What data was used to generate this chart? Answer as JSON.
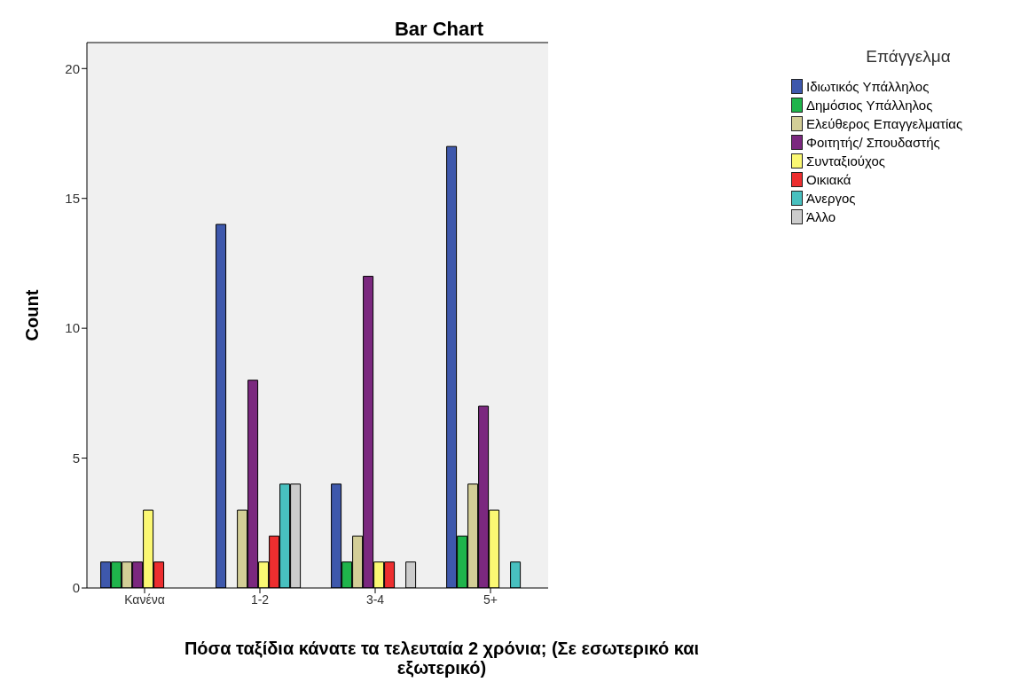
{
  "chart_data": {
    "type": "bar",
    "title": "Bar Chart",
    "xlabel": "Πόσα ταξίδια κάνατε τα τελευταία 2 χρόνια; (Σε εσωτερικό και εξωτερικό)",
    "ylabel": "Count",
    "legend_title": "Επάγγελμα",
    "categories": [
      "Κανένα",
      "1-2",
      "3-4",
      "5+"
    ],
    "series": [
      {
        "name": "Ιδιωτικός Υπάλληλος",
        "color": "#3e58ac",
        "values": [
          1,
          14,
          4,
          17
        ]
      },
      {
        "name": "Δημόσιος Υπάλληλος",
        "color": "#1fb44b",
        "values": [
          1,
          null,
          1,
          2
        ]
      },
      {
        "name": "Ελεύθερος Επαγγελματίας",
        "color": "#d3ce97",
        "values": [
          1,
          3,
          2,
          4
        ]
      },
      {
        "name": "Φοιτητής/ Σπουδαστής",
        "color": "#7b287f",
        "values": [
          1,
          8,
          12,
          7
        ]
      },
      {
        "name": "Συνταξιούχος",
        "color": "#fbf873",
        "values": [
          3,
          1,
          1,
          3
        ]
      },
      {
        "name": "Οικιακά",
        "color": "#ed2e2f",
        "values": [
          1,
          2,
          1,
          null
        ]
      },
      {
        "name": "Άνεργος",
        "color": "#48c0bf",
        "values": [
          null,
          4,
          null,
          1
        ]
      },
      {
        "name": "Άλλο",
        "color": "#cccccc",
        "values": [
          null,
          4,
          1,
          null
        ]
      }
    ],
    "ylim": [
      0,
      21
    ],
    "yticks": [
      0,
      5,
      10,
      15,
      20
    ],
    "grid": false,
    "legend": "top right"
  }
}
